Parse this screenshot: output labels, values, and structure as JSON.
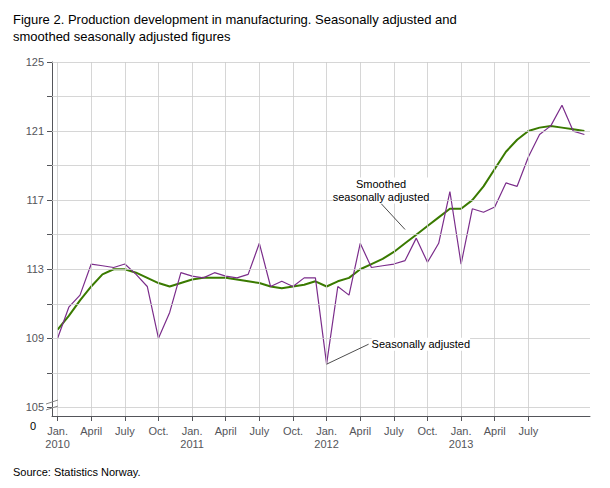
{
  "chart_data": {
    "type": "line",
    "title": "Figure 2. Production development in manufacturing. Seasonally adjusted and\nsmoothed seasonally adjusted figures",
    "source": "Source: Statistics Norway.",
    "categories": [
      "Jan.\n2010",
      null,
      null,
      "April",
      null,
      null,
      "July",
      null,
      null,
      "Oct.",
      null,
      null,
      "Jan.\n2011",
      null,
      null,
      "April",
      null,
      null,
      "July",
      null,
      null,
      "Oct.",
      null,
      null,
      "Jan.\n2012",
      null,
      null,
      "April",
      null,
      null,
      "July",
      null,
      null,
      "Oct.",
      null,
      null,
      "Jan.\n2013",
      null,
      null,
      "April",
      null,
      null,
      "July",
      null,
      null,
      null,
      null,
      null
    ],
    "series": [
      {
        "color": "#7B2D8B",
        "values": [
          109.0,
          110.8,
          111.5,
          113.3,
          113.2,
          113.1,
          113.3,
          112.7,
          112.0,
          109.0,
          110.5,
          112.8,
          112.6,
          112.5,
          112.8,
          112.6,
          112.5,
          112.7,
          114.5,
          112.0,
          112.3,
          112.0,
          112.5,
          112.5,
          107.5,
          112.0,
          111.5,
          114.5,
          113.1,
          113.2,
          113.3,
          113.5,
          114.8,
          113.4,
          114.5,
          117.5,
          113.3,
          116.5,
          116.3,
          116.6,
          118.0,
          117.8,
          119.5,
          120.8,
          121.3,
          122.5,
          121.0,
          120.8
        ]
      },
      {
        "color": "#3a7a00",
        "values": [
          109.5,
          110.3,
          111.2,
          112.0,
          112.7,
          113.0,
          113.0,
          112.8,
          112.5,
          112.2,
          112.0,
          112.2,
          112.4,
          112.5,
          112.5,
          112.5,
          112.4,
          112.3,
          112.2,
          112.0,
          111.9,
          112.0,
          112.1,
          112.3,
          112.0,
          112.3,
          112.5,
          113.0,
          113.3,
          113.6,
          114.0,
          114.5,
          115.0,
          115.5,
          116.0,
          116.5,
          116.5,
          117.0,
          117.8,
          118.8,
          119.8,
          120.5,
          121.0,
          121.2,
          121.3,
          121.2,
          121.1,
          121.0
        ]
      }
    ],
    "ylim": [
      104.5,
      125
    ],
    "yticks": [
      105,
      {
        "value": 107,
        "label": null
      },
      109,
      {
        "value": 111,
        "label": null
      },
      113,
      {
        "value": 115,
        "label": null
      },
      117,
      {
        "value": 119,
        "label": null
      },
      121,
      {
        "value": 123,
        "label": null
      },
      125
    ],
    "grid": true,
    "annotations": [
      {
        "text": "Seasonally adjusted",
        "x": 24,
        "y": 107.5
      },
      {
        "text": "Smoothed\nseasonally adjusted",
        "x": 31,
        "y": 115.3
      },
      {
        "text": "0"
      }
    ]
  }
}
